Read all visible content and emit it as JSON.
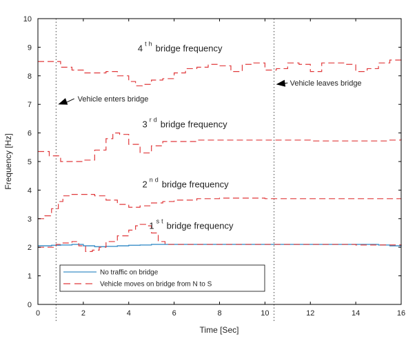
{
  "colors": {
    "no_traffic": "#3b8fc8",
    "vehicle": "#e0383a",
    "axis": "#000000",
    "text": "#222222"
  },
  "chart_data": {
    "type": "line",
    "xlabel": "Time [Sec]",
    "ylabel": "Frequency [Hz]",
    "xlim": [
      0,
      16
    ],
    "ylim": [
      0,
      10
    ],
    "xticks": [
      0,
      2,
      4,
      6,
      8,
      10,
      12,
      14,
      16
    ],
    "yticks": [
      0,
      1,
      2,
      3,
      4,
      5,
      6,
      7,
      8,
      9,
      10
    ],
    "grid": false,
    "legend_position": "bottom-left",
    "vlines": [
      0.8,
      10.4
    ],
    "legend": [
      {
        "label": "No traffic on bridge",
        "style": "solid",
        "color": "#3b8fc8"
      },
      {
        "label": "Vehicle moves on bridge from N to S",
        "style": "dashed",
        "color": "#e0383a"
      }
    ],
    "annotations": [
      {
        "id": "ann4",
        "number": "4",
        "sup": "th",
        "rest": "bridge frequency",
        "x": 4.4,
        "y": 8.85
      },
      {
        "id": "ann3",
        "number": "3",
        "sup": "rd",
        "rest": "bridge frequency",
        "x": 4.6,
        "y": 6.2
      },
      {
        "id": "ann2",
        "number": "2",
        "sup": "nd",
        "rest": "bridge frequency",
        "x": 4.6,
        "y": 4.1
      },
      {
        "id": "ann1",
        "number": "1",
        "sup": "st",
        "rest": "bridge frequency",
        "x": 4.9,
        "y": 2.65
      }
    ],
    "arrows": [
      {
        "label": "Vehicle enters bridge",
        "tip_x": 0.8,
        "tip_y": 7.0,
        "tail_x": 1.6,
        "tail_y": 7.2,
        "label_x": 1.75,
        "label_y": 7.2
      },
      {
        "label": "Vehicle leaves bridge",
        "tip_x": 10.4,
        "tip_y": 7.7,
        "tail_x": 11.0,
        "tail_y": 7.75,
        "label_x": 11.1,
        "label_y": 7.75
      }
    ],
    "series": [
      {
        "name": "No traffic on bridge",
        "style": "solid",
        "x": [
          0,
          0.3,
          0.6,
          1.0,
          1.5,
          2.0,
          2.5,
          3.0,
          3.5,
          4.0,
          4.5,
          5.0,
          5.5,
          6.0,
          7.0,
          8.0,
          9.0,
          10.0,
          11.0,
          12.0,
          13.0,
          14.0,
          15.0,
          15.5,
          16.0
        ],
        "y": [
          2.05,
          2.05,
          2.07,
          2.08,
          2.1,
          2.05,
          2.02,
          2.03,
          2.05,
          2.07,
          2.08,
          2.1,
          2.1,
          2.1,
          2.1,
          2.1,
          2.1,
          2.1,
          2.1,
          2.1,
          2.1,
          2.1,
          2.08,
          2.05,
          2.08
        ]
      },
      {
        "name": "Vehicle moves on bridge from N to S",
        "style": "dashed",
        "x": [
          0,
          0.3,
          0.8,
          1.0,
          1.5,
          1.8,
          2.1,
          2.4,
          2.7,
          3.0,
          3.5,
          4.0,
          4.3,
          4.5,
          4.8,
          5.0,
          5.3,
          5.6,
          6.0,
          7.0,
          8.0,
          9.0,
          10.0,
          11.0,
          12.0,
          13.0,
          14.0,
          15.0,
          16.0
        ],
        "y": [
          2.0,
          2.0,
          2.1,
          2.15,
          2.2,
          2.05,
          1.85,
          1.9,
          2.0,
          2.2,
          2.4,
          2.6,
          2.75,
          2.8,
          2.75,
          2.5,
          2.2,
          2.1,
          2.1,
          2.1,
          2.1,
          2.1,
          2.1,
          2.1,
          2.1,
          2.1,
          2.08,
          2.08,
          2.1
        ]
      },
      {
        "name": "2nd bridge frequency",
        "style": "dashed",
        "x": [
          0,
          0.3,
          0.6,
          0.9,
          1.1,
          1.5,
          2.0,
          2.5,
          3.0,
          3.5,
          4.0,
          4.5,
          5.0,
          5.5,
          6.0,
          7.0,
          8.0,
          9.0,
          10.0,
          11.0,
          12.0,
          13.0,
          14.0,
          15.0,
          16.0
        ],
        "y": [
          3.0,
          3.1,
          3.35,
          3.6,
          3.8,
          3.85,
          3.85,
          3.8,
          3.65,
          3.5,
          3.4,
          3.45,
          3.55,
          3.6,
          3.65,
          3.7,
          3.72,
          3.72,
          3.7,
          3.7,
          3.7,
          3.7,
          3.7,
          3.7,
          3.7
        ]
      },
      {
        "name": "3rd bridge frequency",
        "style": "dashed",
        "x": [
          0,
          0.5,
          1.0,
          1.5,
          2.0,
          2.5,
          3.0,
          3.3,
          3.6,
          4.0,
          4.5,
          5.0,
          5.5,
          6.0,
          6.5,
          7.0,
          8.0,
          9.0,
          10.0,
          11.0,
          12.0,
          13.0,
          14.0,
          15.0,
          15.5,
          16.0
        ],
        "y": [
          5.35,
          5.2,
          5.0,
          5.0,
          5.05,
          5.4,
          5.8,
          6.0,
          5.95,
          5.6,
          5.3,
          5.55,
          5.7,
          5.7,
          5.7,
          5.75,
          5.75,
          5.75,
          5.75,
          5.75,
          5.72,
          5.72,
          5.72,
          5.72,
          5.75,
          5.8
        ]
      },
      {
        "name": "4th bridge frequency",
        "style": "dashed",
        "x": [
          0,
          0.5,
          1.0,
          1.5,
          2.0,
          2.5,
          3.0,
          3.5,
          4.0,
          4.3,
          4.6,
          5.0,
          5.5,
          6.0,
          6.5,
          7.0,
          7.5,
          8.0,
          8.5,
          9.0,
          9.5,
          10.0,
          10.5,
          11.0,
          11.5,
          12.0,
          12.5,
          13.0,
          13.5,
          14.0,
          14.5,
          15.0,
          15.5,
          16.0
        ],
        "y": [
          8.5,
          8.5,
          8.3,
          8.2,
          8.1,
          8.1,
          8.15,
          8.0,
          7.8,
          7.65,
          7.7,
          7.85,
          7.9,
          8.1,
          8.25,
          8.3,
          8.4,
          8.35,
          8.15,
          8.4,
          8.45,
          8.2,
          8.25,
          8.45,
          8.4,
          8.15,
          8.45,
          8.45,
          8.4,
          8.15,
          8.25,
          8.45,
          8.55,
          8.65
        ]
      }
    ]
  }
}
